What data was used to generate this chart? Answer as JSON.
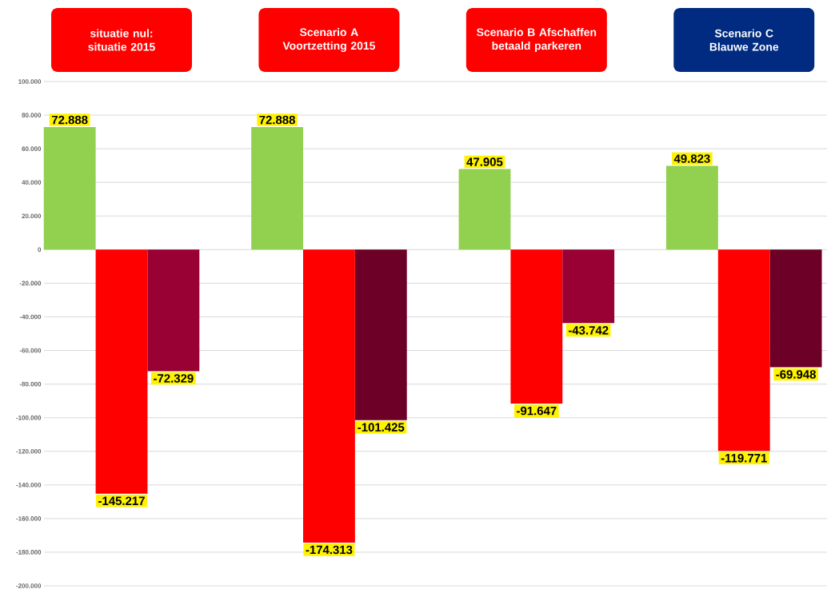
{
  "chart_data": {
    "type": "bar",
    "categories": [
      "situatie nul: situatie 2015",
      "Scenario A Voortzetting 2015",
      "Scenario B Afschaffen betaald parkeren",
      "Scenario C Blauwe Zone"
    ],
    "series": [
      {
        "color": "#92d050",
        "values": [
          72888,
          72888,
          47905,
          49823
        ],
        "value_labels": [
          "72.888",
          "72.888",
          "47.905",
          "49.823"
        ]
      },
      {
        "color": "#ff0000",
        "values": [
          -145217,
          -174313,
          -91647,
          -119771
        ],
        "value_labels": [
          "-145.217",
          "-174.313",
          "-91.647",
          "-119.771"
        ]
      },
      {
        "colors": [
          "#990033",
          "#6d0026",
          "#990033",
          "#6d0026"
        ],
        "values": [
          -72329,
          -101425,
          -43742,
          -69948
        ],
        "value_labels": [
          "-72.329",
          "-101.425",
          "-43.742",
          "-69.948"
        ]
      }
    ],
    "ylim": [
      -200000,
      100000
    ],
    "yticks": [
      {
        "value": -200000,
        "label": "-200.000"
      },
      {
        "value": -180000,
        "label": "-180.000"
      },
      {
        "value": -160000,
        "label": "-160.000"
      },
      {
        "value": -140000,
        "label": "-140.000"
      },
      {
        "value": -120000,
        "label": "-120.000"
      },
      {
        "value": -100000,
        "label": "-100.000"
      },
      {
        "value": -80000,
        "label": "-80.000"
      },
      {
        "value": -60000,
        "label": "-60.000"
      },
      {
        "value": -40000,
        "label": "-40.000"
      },
      {
        "value": -20000,
        "label": "-20.000"
      },
      {
        "value": 0,
        "label": "0"
      },
      {
        "value": 20000,
        "label": "20.000"
      },
      {
        "value": 40000,
        "label": "40.000"
      },
      {
        "value": 60000,
        "label": "60.000"
      },
      {
        "value": 80000,
        "label": "80.000"
      },
      {
        "value": 100000,
        "label": "100.000"
      }
    ],
    "grid": "y"
  }
}
